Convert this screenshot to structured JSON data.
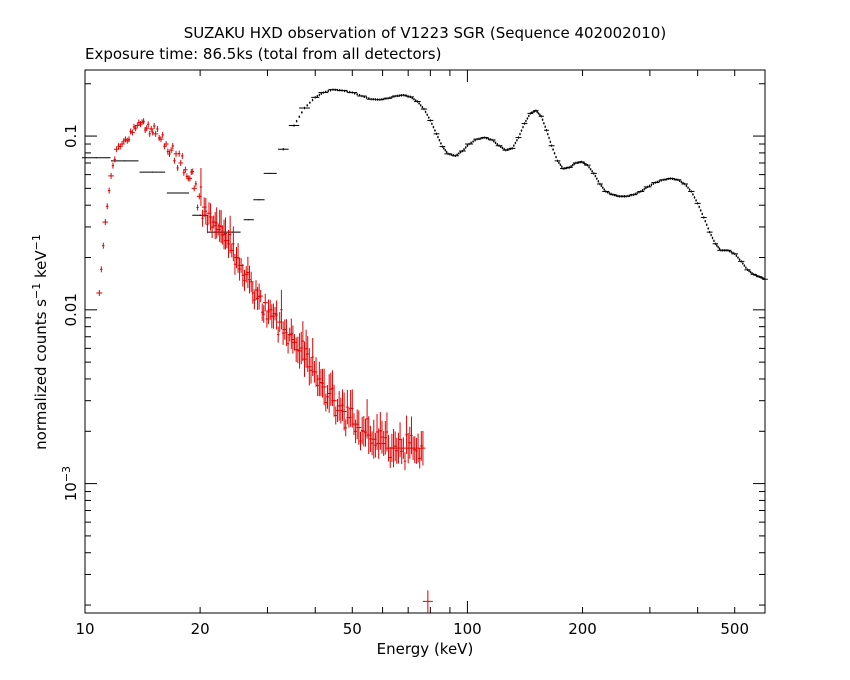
{
  "chart_data": {
    "type": "scatter",
    "title": "SUZAKU HXD observation of V1223 SGR (Sequence 402002010)",
    "subtitle": "Exposure time: 86.5ks (total from all detectors)",
    "xlabel": "Energy (keV)",
    "ylabel": {
      "prefix": "normalized counts s",
      "sup1": "−1",
      "mid": " keV",
      "sup2": "−1"
    },
    "xscale": "log",
    "yscale": "log",
    "xlim": [
      10,
      600
    ],
    "ylim": [
      0.00018,
      0.24
    ],
    "xticks": [
      {
        "value": 10,
        "label": "10"
      },
      {
        "value": 20,
        "label": "20"
      },
      {
        "value": 50,
        "label": "50"
      },
      {
        "value": 100,
        "label": "100"
      },
      {
        "value": 200,
        "label": "200"
      },
      {
        "value": 500,
        "label": "500"
      }
    ],
    "yticks": [
      {
        "value": 0.1,
        "label": "0.1"
      },
      {
        "value": 0.01,
        "label": "0.01"
      },
      {
        "value": 0.001,
        "label": "10",
        "sup": "−3"
      }
    ],
    "series": [
      {
        "color": "#000000",
        "style": "crosses",
        "points": [
          [
            10.7,
            0.075
          ],
          [
            12.7,
            0.072
          ],
          [
            15.0,
            0.062
          ],
          [
            17.5,
            0.047
          ],
          [
            20.0,
            0.035
          ],
          [
            22.0,
            0.028
          ],
          [
            24.3,
            0.028
          ],
          [
            26.8,
            0.033
          ],
          [
            28.5,
            0.043
          ],
          [
            30.5,
            0.061
          ],
          [
            33.0,
            0.084
          ],
          [
            35.2,
            0.115
          ],
          [
            37.5,
            0.145
          ],
          [
            40.0,
            0.167
          ],
          [
            42.0,
            0.178
          ],
          [
            44.5,
            0.185
          ],
          [
            47.0,
            0.183
          ],
          [
            50.0,
            0.178
          ],
          [
            53.0,
            0.17
          ],
          [
            56.0,
            0.163
          ],
          [
            59.0,
            0.162
          ],
          [
            62.0,
            0.165
          ],
          [
            65.0,
            0.17
          ],
          [
            68.0,
            0.172
          ],
          [
            71.0,
            0.168
          ],
          [
            74.0,
            0.158
          ],
          [
            77.0,
            0.143
          ],
          [
            80.0,
            0.123
          ],
          [
            83.0,
            0.103
          ],
          [
            86.0,
            0.087
          ],
          [
            89.0,
            0.079
          ],
          [
            93.0,
            0.077
          ],
          [
            97.0,
            0.082
          ],
          [
            101.0,
            0.09
          ],
          [
            106.0,
            0.096
          ],
          [
            111.0,
            0.098
          ],
          [
            116.0,
            0.095
          ],
          [
            121.0,
            0.088
          ],
          [
            126.0,
            0.083
          ],
          [
            131.0,
            0.085
          ],
          [
            136.0,
            0.098
          ],
          [
            141.0,
            0.118
          ],
          [
            146.0,
            0.135
          ],
          [
            151.0,
            0.14
          ],
          [
            156.0,
            0.13
          ],
          [
            161.0,
            0.108
          ],
          [
            166.0,
            0.088
          ],
          [
            172.0,
            0.072
          ],
          [
            178.0,
            0.065
          ],
          [
            185.0,
            0.066
          ],
          [
            192.0,
            0.07
          ],
          [
            199.0,
            0.071
          ],
          [
            206.0,
            0.068
          ],
          [
            214.0,
            0.061
          ],
          [
            222.0,
            0.053
          ],
          [
            230.0,
            0.048
          ],
          [
            240.0,
            0.046
          ],
          [
            250.0,
            0.045
          ],
          [
            260.0,
            0.045
          ],
          [
            272.0,
            0.046
          ],
          [
            284.0,
            0.048
          ],
          [
            296.0,
            0.051
          ],
          [
            310.0,
            0.054
          ],
          [
            325.0,
            0.056
          ],
          [
            340.0,
            0.057
          ],
          [
            355.0,
            0.056
          ],
          [
            370.0,
            0.053
          ],
          [
            385.0,
            0.048
          ],
          [
            400.0,
            0.041
          ],
          [
            415.0,
            0.034
          ],
          [
            430.0,
            0.028
          ],
          [
            445.0,
            0.024
          ],
          [
            460.0,
            0.022
          ],
          [
            480.0,
            0.022
          ],
          [
            500.0,
            0.021
          ],
          [
            520.0,
            0.019
          ],
          [
            540.0,
            0.017
          ],
          [
            560.0,
            0.016
          ],
          [
            580.0,
            0.0155
          ],
          [
            600.0,
            0.015
          ]
        ]
      },
      {
        "color": "#e00000",
        "style": "crosses",
        "points": [
          [
            10.9,
            0.0125
          ],
          [
            11.3,
            0.032
          ],
          [
            11.7,
            0.059
          ],
          [
            12.1,
            0.084
          ],
          [
            12.5,
            0.09
          ],
          [
            12.9,
            0.094
          ],
          [
            13.3,
            0.105
          ],
          [
            13.7,
            0.115
          ],
          [
            14.1,
            0.12
          ],
          [
            14.5,
            0.111
          ],
          [
            14.9,
            0.11
          ],
          [
            15.3,
            0.103
          ],
          [
            15.8,
            0.096
          ],
          [
            16.3,
            0.09
          ],
          [
            16.8,
            0.083
          ],
          [
            17.3,
            0.079
          ],
          [
            17.8,
            0.07
          ],
          [
            18.3,
            0.064
          ],
          [
            18.8,
            0.057
          ],
          [
            19.3,
            0.05
          ],
          [
            19.9,
            0.045
          ],
          [
            20.5,
            0.039
          ],
          [
            21.1,
            0.036
          ],
          [
            21.7,
            0.032
          ],
          [
            22.3,
            0.029
          ],
          [
            22.9,
            0.027
          ],
          [
            23.5,
            0.025
          ],
          [
            24.2,
            0.022
          ],
          [
            24.9,
            0.02
          ],
          [
            25.6,
            0.018
          ],
          [
            26.4,
            0.016
          ],
          [
            27.2,
            0.0145
          ],
          [
            28.0,
            0.013
          ],
          [
            28.8,
            0.012
          ],
          [
            29.6,
            0.011
          ],
          [
            30.5,
            0.01
          ],
          [
            31.4,
            0.0095
          ],
          [
            32.3,
            0.0085
          ],
          [
            33.3,
            0.0077
          ],
          [
            34.3,
            0.0072
          ],
          [
            35.3,
            0.0065
          ],
          [
            36.4,
            0.0058
          ],
          [
            37.5,
            0.0052
          ],
          [
            38.6,
            0.0047
          ],
          [
            39.8,
            0.0044
          ],
          [
            41.0,
            0.004
          ],
          [
            42.2,
            0.0036
          ],
          [
            43.5,
            0.0033
          ],
          [
            44.8,
            0.003
          ],
          [
            46.2,
            0.0028
          ],
          [
            47.6,
            0.0026
          ],
          [
            49.0,
            0.0024
          ],
          [
            50.5,
            0.0022
          ],
          [
            52.0,
            0.0021
          ],
          [
            53.6,
            0.002
          ],
          [
            55.2,
            0.0019
          ],
          [
            56.9,
            0.0018
          ],
          [
            58.6,
            0.0017
          ],
          [
            60.4,
            0.0017
          ],
          [
            62.2,
            0.0016
          ],
          [
            64.1,
            0.0016
          ],
          [
            66.0,
            0.0016
          ],
          [
            68.0,
            0.0016
          ],
          [
            70.0,
            0.0016
          ],
          [
            72.1,
            0.0016
          ],
          [
            74.3,
            0.0016
          ],
          [
            76.5,
            0.0016
          ],
          [
            78.8,
            0.00021
          ]
        ]
      }
    ]
  }
}
